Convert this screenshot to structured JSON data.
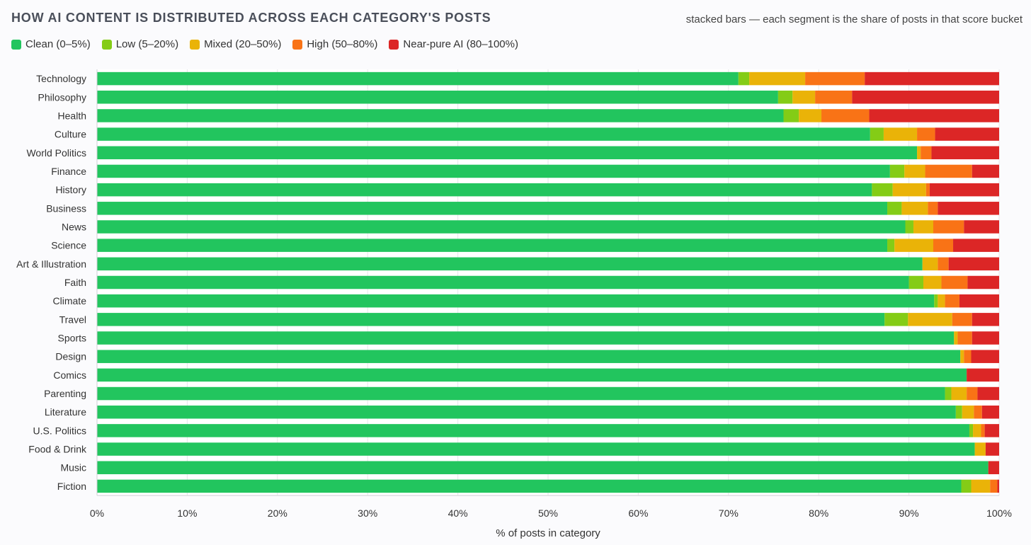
{
  "header": {
    "title": "HOW AI CONTENT IS DISTRIBUTED ACROSS EACH CATEGORY'S POSTS",
    "subtitle": "stacked bars — each segment is the share of posts in that score bucket"
  },
  "chart_data": {
    "type": "bar",
    "orientation": "horizontal",
    "stacked": true,
    "title": "HOW AI CONTENT IS DISTRIBUTED ACROSS EACH CATEGORY'S POSTS",
    "subtitle": "stacked bars — each segment is the share of posts in that score bucket",
    "xlabel": "% of posts in category",
    "ylabel": "",
    "xlim": [
      0,
      100
    ],
    "xticks": [
      "0%",
      "10%",
      "20%",
      "30%",
      "40%",
      "50%",
      "60%",
      "70%",
      "80%",
      "90%",
      "100%"
    ],
    "grid": "vertical",
    "legend_position": "top-left",
    "categories": [
      "Technology",
      "Philosophy",
      "Health",
      "Culture",
      "World Politics",
      "Finance",
      "History",
      "Business",
      "News",
      "Science",
      "Art & Illustration",
      "Faith",
      "Climate",
      "Travel",
      "Sports",
      "Design",
      "Comics",
      "Parenting",
      "Literature",
      "U.S. Politics",
      "Food & Drink",
      "Music",
      "Fiction"
    ],
    "series": [
      {
        "name": "Clean (0–5%)",
        "color": "#22c55e",
        "values": [
          71.1,
          75.5,
          76.1,
          85.7,
          90.9,
          87.9,
          85.9,
          87.6,
          89.6,
          87.6,
          91.5,
          90.0,
          92.8,
          87.3,
          95.0,
          95.7,
          96.4,
          94.0,
          95.2,
          96.7,
          97.3,
          98.8,
          95.8
        ]
      },
      {
        "name": "Low (5–20%)",
        "color": "#84cc16",
        "values": [
          1.2,
          1.6,
          1.7,
          1.5,
          0.0,
          1.6,
          2.3,
          1.6,
          0.9,
          0.8,
          0.0,
          1.6,
          0.4,
          2.6,
          0.0,
          0.0,
          0.0,
          0.7,
          0.7,
          0.4,
          0.0,
          0.0,
          1.1
        ]
      },
      {
        "name": "Mixed (20–50%)",
        "color": "#eab308",
        "values": [
          6.2,
          2.5,
          2.5,
          3.7,
          0.4,
          2.3,
          3.7,
          2.9,
          2.2,
          4.3,
          1.7,
          2.0,
          0.8,
          4.9,
          0.4,
          0.4,
          0.0,
          1.7,
          1.3,
          0.9,
          1.2,
          0.0,
          2.1
        ]
      },
      {
        "name": "High (50–80%)",
        "color": "#f97316",
        "values": [
          6.6,
          4.1,
          5.3,
          2.0,
          1.2,
          5.2,
          0.4,
          1.1,
          3.4,
          2.2,
          1.2,
          2.9,
          1.6,
          2.2,
          1.6,
          0.8,
          0.0,
          1.2,
          0.9,
          0.4,
          0.0,
          0.0,
          0.8
        ]
      },
      {
        "name": "Near-pure AI (80–100%)",
        "color": "#dc2626",
        "values": [
          14.9,
          16.3,
          14.4,
          7.1,
          7.5,
          3.0,
          7.7,
          6.8,
          3.9,
          5.1,
          5.6,
          3.5,
          4.4,
          3.0,
          3.0,
          3.1,
          3.6,
          2.4,
          1.9,
          1.6,
          1.5,
          1.2,
          0.2
        ]
      }
    ]
  }
}
